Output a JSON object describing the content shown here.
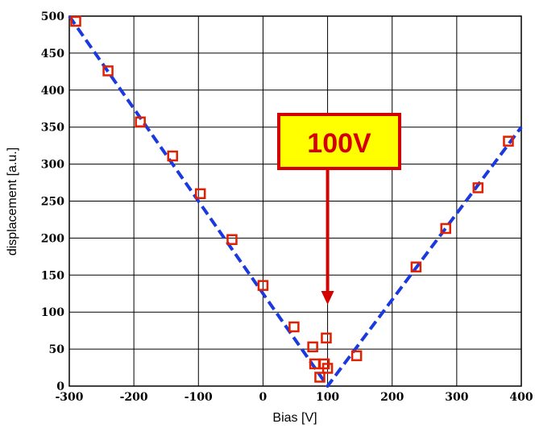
{
  "chart_data": {
    "type": "scatter",
    "xlabel": "Bias [V]",
    "ylabel": "displacement [a.u.]",
    "xlim": [
      -300,
      400
    ],
    "ylim": [
      0,
      500
    ],
    "xticks": [
      -300,
      -200,
      -100,
      0,
      100,
      200,
      300,
      400
    ],
    "yticks": [
      0,
      50,
      100,
      150,
      200,
      250,
      300,
      350,
      400,
      450,
      500
    ],
    "grid": true,
    "series": [
      {
        "kind": "points",
        "marker": "open-square",
        "color": "#e02000",
        "x": [
          -290,
          -240,
          -190,
          -140,
          -97,
          -48,
          0,
          48,
          77,
          80,
          88,
          95,
          98,
          100,
          145,
          237,
          283,
          333,
          380
        ],
        "y": [
          493,
          426,
          357,
          311,
          260,
          198,
          136,
          80,
          53,
          30,
          12,
          30,
          65,
          24,
          41,
          161,
          213,
          268,
          331
        ]
      },
      {
        "kind": "fit-line",
        "style": "dashed",
        "color": "#1a3ae0",
        "x": [
          -300,
          100,
          400
        ],
        "y": [
          500,
          0,
          350
        ]
      }
    ],
    "annotation": {
      "text": "100V",
      "arrow_x": 100,
      "arrow_y_end": 110,
      "border_color": "#d40000",
      "fill_color": "#ffff00"
    }
  }
}
